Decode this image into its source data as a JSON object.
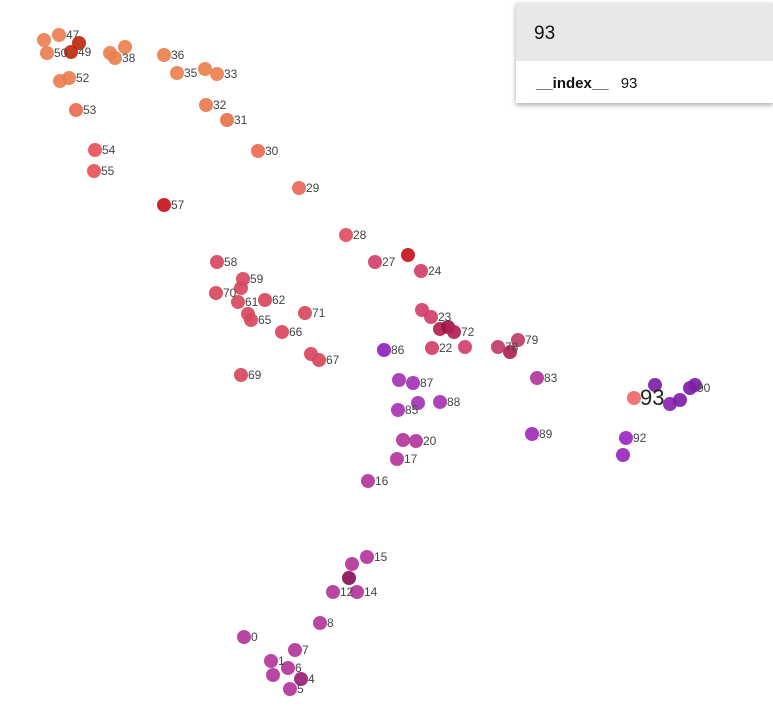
{
  "tooltip": {
    "title": "93",
    "field_name": "__index__",
    "field_value": "93"
  },
  "chart_data": {
    "type": "scatter",
    "title": "",
    "xlabel": "",
    "ylabel": "",
    "xlim": [
      0,
      773
    ],
    "ylim": [
      0,
      721
    ],
    "grid": false,
    "legend": "none",
    "focus_label": "93",
    "points": [
      {
        "label": "0",
        "x": 244,
        "y": 637,
        "color": "#b4369b"
      },
      {
        "label": "1",
        "x": 271,
        "y": 661,
        "color": "#b4369b"
      },
      {
        "label": "4",
        "x": 301,
        "y": 679,
        "color": "#9a1f78"
      },
      {
        "label": "5",
        "x": 290,
        "y": 689,
        "color": "#b4369b"
      },
      {
        "label": "6",
        "x": 288,
        "y": 668,
        "color": "#b4369b"
      },
      {
        "label": "7",
        "x": 295,
        "y": 650,
        "color": "#b4369b"
      },
      {
        "label": "8",
        "x": 320,
        "y": 623,
        "color": "#b4369b"
      },
      {
        "label": "12",
        "x": 333,
        "y": 592,
        "color": "#b4369b"
      },
      {
        "label": "14",
        "x": 357,
        "y": 592,
        "color": "#b4369b"
      },
      {
        "label": "15",
        "x": 367,
        "y": 557,
        "color": "#b4369b"
      },
      {
        "label": "16",
        "x": 368,
        "y": 481,
        "color": "#b4369b"
      },
      {
        "label": "17",
        "x": 397,
        "y": 459,
        "color": "#b4369b"
      },
      {
        "label": "20",
        "x": 416,
        "y": 441,
        "color": "#b4369b"
      },
      {
        "label": "22",
        "x": 432,
        "y": 348,
        "color": "#d03f6a"
      },
      {
        "label": "23",
        "x": 431,
        "y": 317,
        "color": "#d03f6a"
      },
      {
        "label": "24",
        "x": 421,
        "y": 271,
        "color": "#d03f6a"
      },
      {
        "label": "27",
        "x": 375,
        "y": 262,
        "color": "#d03f6a"
      },
      {
        "label": "28",
        "x": 346,
        "y": 235,
        "color": "#e04f5f"
      },
      {
        "label": "29",
        "x": 299,
        "y": 188,
        "color": "#e8685a"
      },
      {
        "label": "30",
        "x": 258,
        "y": 151,
        "color": "#ea6a50"
      },
      {
        "label": "31",
        "x": 227,
        "y": 120,
        "color": "#e9724f"
      },
      {
        "label": "32",
        "x": 206,
        "y": 105,
        "color": "#e9784f"
      },
      {
        "label": "33",
        "x": 217,
        "y": 74,
        "color": "#ea8050"
      },
      {
        "label": "35",
        "x": 177,
        "y": 73,
        "color": "#ea8050"
      },
      {
        "label": "36",
        "x": 164,
        "y": 55,
        "color": "#ea8050"
      },
      {
        "label": "38",
        "x": 115,
        "y": 58,
        "color": "#ea8050"
      },
      {
        "label": "47",
        "x": 59,
        "y": 35,
        "color": "#ea7d50"
      },
      {
        "label": "49",
        "x": 71,
        "y": 52,
        "color": "#c0280e"
      },
      {
        "label": "50",
        "x": 47,
        "y": 53,
        "color": "#ea7d50"
      },
      {
        "label": "52",
        "x": 69,
        "y": 78,
        "color": "#ea7d50"
      },
      {
        "label": "53",
        "x": 76,
        "y": 110,
        "color": "#ea6a50"
      },
      {
        "label": "54",
        "x": 95,
        "y": 150,
        "color": "#e8535a"
      },
      {
        "label": "55",
        "x": 94,
        "y": 171,
        "color": "#e8535a"
      },
      {
        "label": "57",
        "x": 164,
        "y": 205,
        "color": "#c5141e"
      },
      {
        "label": "58",
        "x": 217,
        "y": 262,
        "color": "#d8485e"
      },
      {
        "label": "59",
        "x": 243,
        "y": 279,
        "color": "#d8485e"
      },
      {
        "label": "61",
        "x": 238,
        "y": 302,
        "color": "#d8485e"
      },
      {
        "label": "62",
        "x": 265,
        "y": 300,
        "color": "#d8485e"
      },
      {
        "label": "65",
        "x": 251,
        "y": 320,
        "color": "#d8485e"
      },
      {
        "label": "66",
        "x": 282,
        "y": 332,
        "color": "#d8485e"
      },
      {
        "label": "67",
        "x": 319,
        "y": 360,
        "color": "#d8485e"
      },
      {
        "label": "69",
        "x": 241,
        "y": 375,
        "color": "#d8485e"
      },
      {
        "label": "70",
        "x": 216,
        "y": 293,
        "color": "#d8485e"
      },
      {
        "label": "71",
        "x": 305,
        "y": 313,
        "color": "#d8485e"
      },
      {
        "label": "72",
        "x": 454,
        "y": 332,
        "color": "#b0224f"
      },
      {
        "label": "78",
        "x": 498,
        "y": 347,
        "color": "#c23a6a"
      },
      {
        "label": "79",
        "x": 518,
        "y": 340,
        "color": "#c23a6a"
      },
      {
        "label": "83",
        "x": 537,
        "y": 378,
        "color": "#b4369b"
      },
      {
        "label": "85",
        "x": 398,
        "y": 410,
        "color": "#a533b2"
      },
      {
        "label": "86",
        "x": 384,
        "y": 350,
        "color": "#8e24bd"
      },
      {
        "label": "87",
        "x": 413,
        "y": 383,
        "color": "#a533b2"
      },
      {
        "label": "88",
        "x": 440,
        "y": 402,
        "color": "#a533b2"
      },
      {
        "label": "89",
        "x": 532,
        "y": 434,
        "color": "#a02bb8"
      },
      {
        "label": "90",
        "x": 690,
        "y": 388,
        "color": "#7d1fa8"
      },
      {
        "label": "92",
        "x": 626,
        "y": 438,
        "color": "#9a28c0"
      },
      {
        "label": "93",
        "x": 634,
        "y": 398,
        "color": "#ef6868"
      }
    ],
    "unlabeled_points": [
      {
        "x": 44,
        "y": 40,
        "color": "#ea7d50"
      },
      {
        "x": 60,
        "y": 81,
        "color": "#ea7d50"
      },
      {
        "x": 79,
        "y": 43,
        "color": "#c0280e"
      },
      {
        "x": 125,
        "y": 47,
        "color": "#ea8050"
      },
      {
        "x": 110,
        "y": 53,
        "color": "#ea8050"
      },
      {
        "x": 205,
        "y": 69,
        "color": "#ea8050"
      },
      {
        "x": 408,
        "y": 255,
        "color": "#c5141e"
      },
      {
        "x": 241,
        "y": 288,
        "color": "#d8485e"
      },
      {
        "x": 248,
        "y": 314,
        "color": "#d8485e"
      },
      {
        "x": 311,
        "y": 354,
        "color": "#d8485e"
      },
      {
        "x": 422,
        "y": 310,
        "color": "#d03f6a"
      },
      {
        "x": 440,
        "y": 329,
        "color": "#b0224f"
      },
      {
        "x": 448,
        "y": 327,
        "color": "#a0154a"
      },
      {
        "x": 465,
        "y": 347,
        "color": "#d03f6a"
      },
      {
        "x": 510,
        "y": 352,
        "color": "#b0224f"
      },
      {
        "x": 399,
        "y": 380,
        "color": "#a533b2"
      },
      {
        "x": 418,
        "y": 403,
        "color": "#a533b2"
      },
      {
        "x": 403,
        "y": 440,
        "color": "#b4369b"
      },
      {
        "x": 352,
        "y": 564,
        "color": "#b4369b"
      },
      {
        "x": 349,
        "y": 578,
        "color": "#8a0f5a"
      },
      {
        "x": 273,
        "y": 675,
        "color": "#b4369b"
      },
      {
        "x": 655,
        "y": 385,
        "color": "#7d1fa8"
      },
      {
        "x": 695,
        "y": 385,
        "color": "#7d1fa8"
      },
      {
        "x": 670,
        "y": 404,
        "color": "#8a22b0"
      },
      {
        "x": 680,
        "y": 400,
        "color": "#7d1fa8"
      },
      {
        "x": 623,
        "y": 455,
        "color": "#9a28c0"
      }
    ]
  }
}
